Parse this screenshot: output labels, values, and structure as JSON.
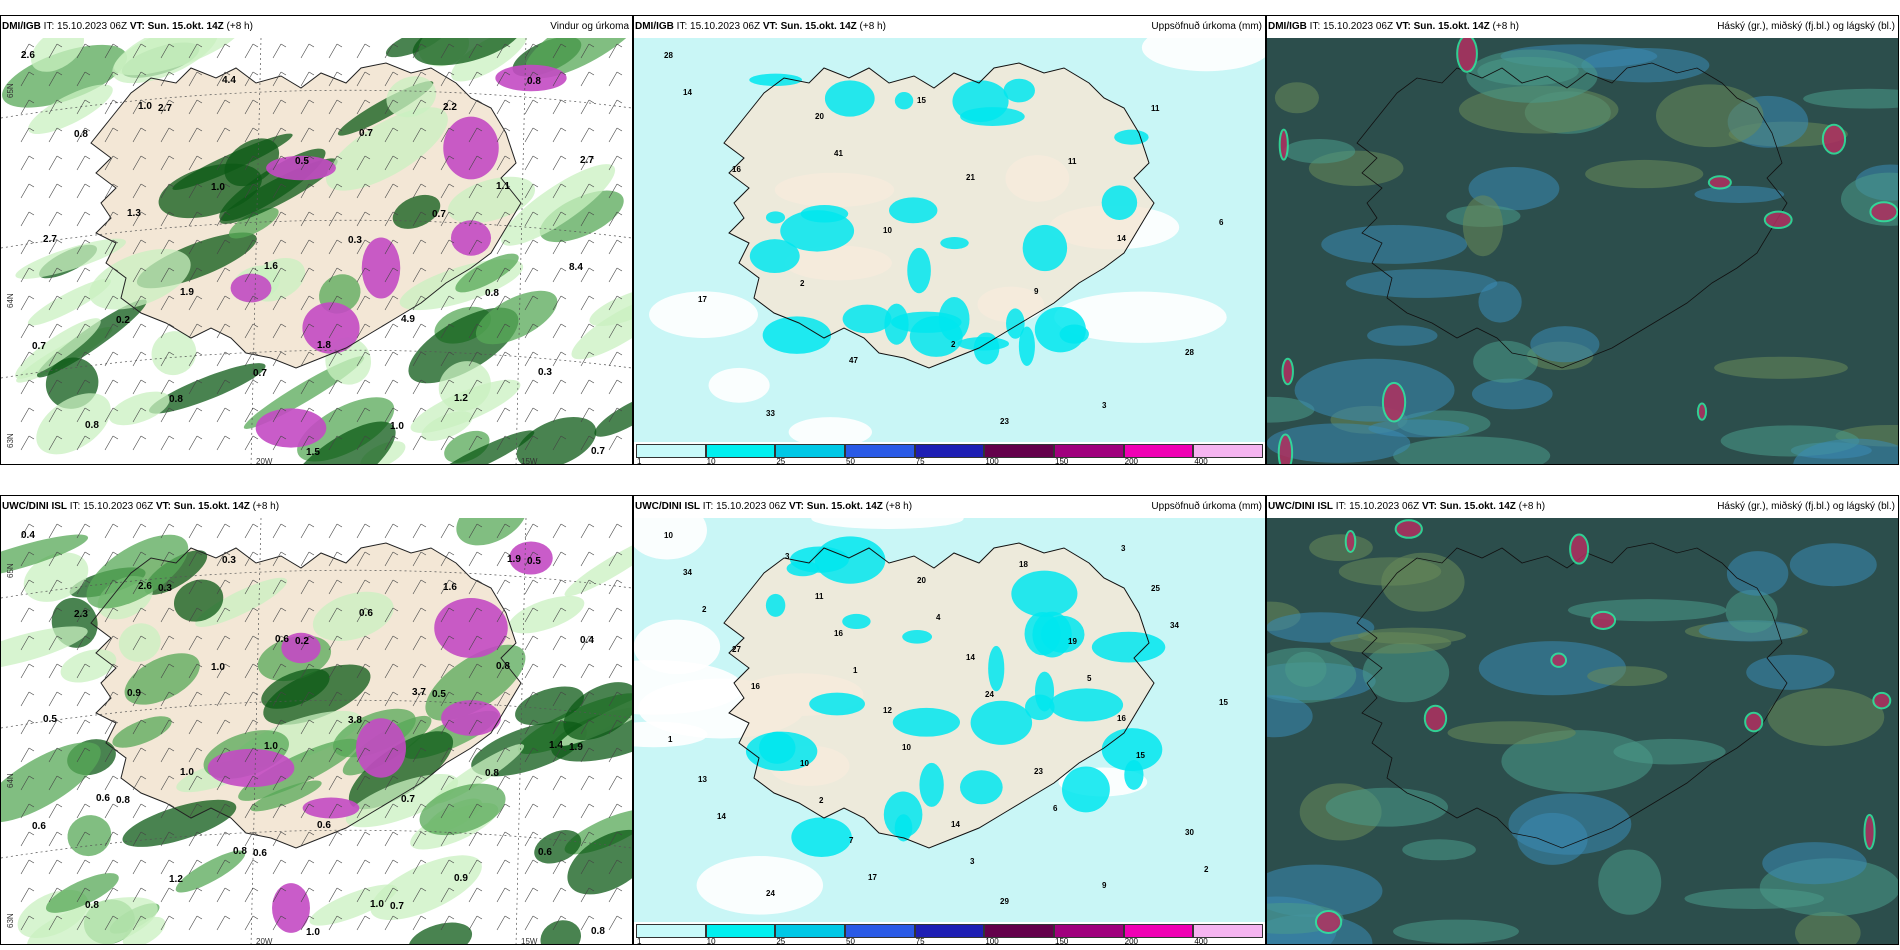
{
  "panels": [
    {
      "model": "DMI/IGB",
      "issued": " IT: 15.10.2023 06Z ",
      "valid_label": "VT: Sun. 15.okt. 14Z",
      "lead": " (+8 h)",
      "title": "Vindur og úrkoma",
      "variant": "wind",
      "axis_labels": [
        "20W",
        "15W",
        "65N",
        "64N",
        "63N"
      ],
      "values": [
        "2.6",
        "2.7",
        "0.5",
        "0.7",
        "8.4",
        "0.2",
        "0.7",
        "1.0",
        "0.8",
        "0.8",
        "1.0",
        "0.3",
        "0.8",
        "0.7",
        "0.8",
        "1.5",
        "2.2",
        "2.7",
        "1.3",
        "1.6",
        "4.9",
        "0.3",
        "0.8",
        "4.4",
        "0.7",
        "1.1",
        "2.7",
        "1.9",
        "1.8",
        "1.2",
        "0.7",
        "1.0"
      ]
    },
    {
      "model": "DMI/IGB",
      "issued": " IT: 15.10.2023 06Z ",
      "valid_label": "VT: Sun. 15.okt. 14Z",
      "lead": " (+8 h)",
      "title": "Uppsöfnuð úrkoma (mm)",
      "variant": "precip",
      "values": [
        "28",
        "20",
        "21",
        "14",
        "17",
        "47",
        "23",
        "11",
        "16",
        "10",
        "9",
        "28",
        "33",
        "15",
        "11",
        "6",
        "2",
        "2",
        "3",
        "14",
        "41"
      ]
    },
    {
      "model": "DMI/IGB",
      "issued": " IT: 15.10.2023 06Z ",
      "valid_label": "VT: Sun. 15.okt. 14Z",
      "lead": " (+8 h)",
      "title": "Háský (gr.), miðský (fj.bl.) og lágský (bl.)",
      "variant": "cloud"
    },
    {
      "model": "UWC/DINI ISL",
      "issued": " IT: 15.10.2023 06Z ",
      "valid_label": "VT: Sun. 15.okt. 14Z",
      "lead": " (+8 h)",
      "title": "",
      "variant": "wind",
      "axis_labels": [
        "20W",
        "15W",
        "65N",
        "64N",
        "63N"
      ],
      "values": [
        "0.4",
        "0.3",
        "0.2",
        "0.5",
        "1.9",
        "0.8",
        "0.6",
        "0.7",
        "0.5",
        "2.3",
        "1.0",
        "3.8",
        "0.8",
        "0.6",
        "1.2",
        "1.0",
        "1.6",
        "0.4",
        "0.9",
        "1.0",
        "0.7",
        "0.6",
        "0.8",
        "0.3",
        "0.6",
        "0.8",
        "0.5",
        "1.0",
        "0.6",
        "0.9",
        "0.8",
        "2.6",
        "0.6",
        "3.7",
        "1.4",
        "0.6",
        "0.8",
        "1.0",
        "1.9"
      ]
    },
    {
      "model": "UWC/DINI ISL",
      "issued": " IT: 15.10.2023 06Z ",
      "valid_label": "VT: Sun. 15.okt. 14Z",
      "lead": " (+8 h)",
      "title": "Uppsöfnuð úrkoma (mm)",
      "variant": "precip",
      "values": [
        "10",
        "11",
        "14",
        "16",
        "13",
        "7",
        "29",
        "25",
        "27",
        "12",
        "23",
        "30",
        "24",
        "20",
        "19",
        "15",
        "10",
        "14",
        "9",
        "34",
        "16",
        "24",
        "15",
        "14",
        "17",
        "18",
        "34",
        "16",
        "10",
        "6",
        "2",
        "3",
        "4",
        "5",
        "1",
        "2",
        "3",
        "3",
        "2",
        "1"
      ]
    },
    {
      "model": "UWC/DINI ISL",
      "issued": " IT: 15.10.2023 06Z ",
      "valid_label": "VT: Sun. 15.okt. 14Z",
      "lead": " (+8 h)",
      "title": "Háský (gr.), miðský (fj.bl.) og lágský (bl.)",
      "variant": "cloud"
    }
  ],
  "colorbar": {
    "ticks": [
      "1",
      "10",
      "25",
      "50",
      "75",
      "100",
      "150",
      "200",
      "400"
    ],
    "colors": [
      "#c8fafa",
      "#00f0f0",
      "#00c8e6",
      "#2a5ae6",
      "#1e1eb4",
      "#64004b",
      "#a0007d",
      "#f000b4",
      "#f5b4f0"
    ]
  },
  "palette": {
    "land_beige": "#f3e7d6",
    "green_light": "#c9f0c0",
    "green_mid": "#57a857",
    "green_dark": "#0c5a16",
    "purple": "#c34ac3",
    "cyan_light": "#c9f6f6",
    "cyan": "#00e6ef",
    "cloud_dark": "#2c4e4c",
    "cloud_blue": "#3a8ab5"
  }
}
